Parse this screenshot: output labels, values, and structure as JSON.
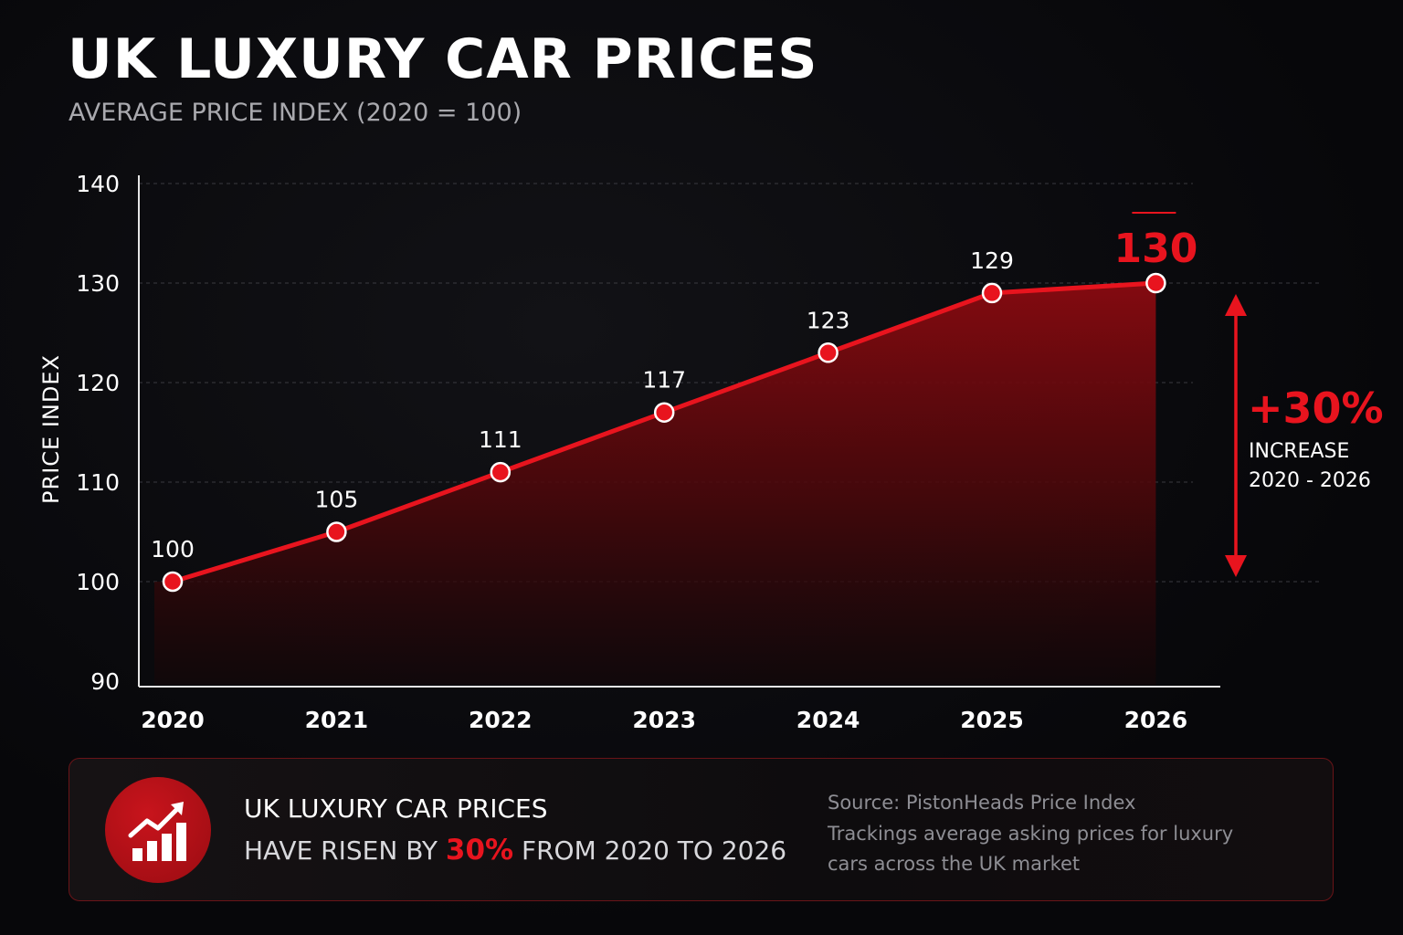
{
  "header": {
    "title": "UK LUXURY CAR PRICES",
    "subtitle": "AVERAGE PRICE INDEX (2020 = 100)"
  },
  "colors": {
    "accent": "#e8141e",
    "background": "#07070a",
    "area_top": "#8a0a10",
    "text_muted": "#a9a9ae"
  },
  "chart_data": {
    "type": "area",
    "title": "UK LUXURY CAR PRICES",
    "subtitle": "AVERAGE PRICE INDEX (2020 = 100)",
    "xlabel": "",
    "ylabel": "PRICE INDEX",
    "categories": [
      "2020",
      "2021",
      "2022",
      "2023",
      "2024",
      "2025",
      "2026"
    ],
    "values": [
      100,
      105,
      111,
      117,
      123,
      129,
      130
    ],
    "data_labels": [
      "100",
      "105",
      "111",
      "117",
      "123",
      "129",
      "130"
    ],
    "ylim": [
      90,
      140
    ],
    "yticks": [
      90,
      100,
      110,
      120,
      130,
      140
    ],
    "ytick_labels": [
      "90",
      "100",
      "110",
      "120",
      "130",
      "140"
    ],
    "grid": "horizontal dashed",
    "legend": "none",
    "annotation": {
      "value": "+30%",
      "line1": "INCREASE",
      "line2": "2020 - 2026",
      "from": 100,
      "to": 130
    }
  },
  "summary": {
    "icon": "bar-chart-rising-arrow-icon",
    "line1": "UK LUXURY CAR PRICES",
    "line2_prefix": "HAVE RISEN BY",
    "line2_highlight": "30%",
    "line2_suffix": "FROM 2020 TO 2026",
    "source_lines": [
      "Source: PistonHeads Price Index",
      "Trackings average asking prices for luxury",
      "cars across the UK market"
    ]
  }
}
